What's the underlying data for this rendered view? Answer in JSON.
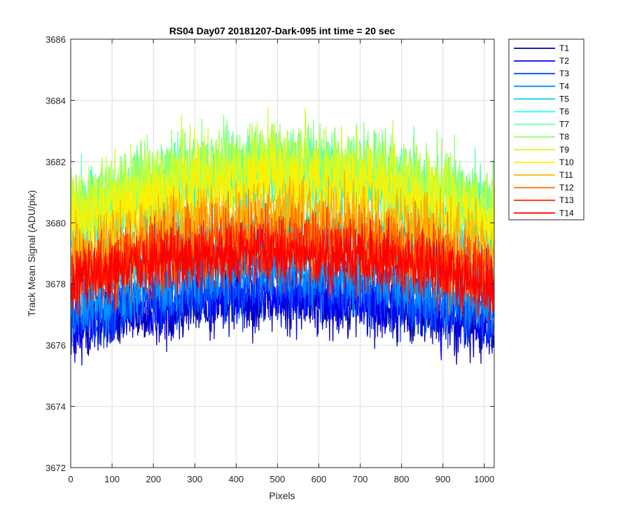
{
  "chart_data": {
    "type": "line",
    "title": "RS04 Day07 20181207-Dark-095 int time = 20 sec",
    "xlabel": "Pixels",
    "ylabel": "Track Mean Signal (ADU/pix)",
    "xlim": [
      0,
      1024
    ],
    "ylim": [
      3672,
      3686
    ],
    "xticks": [
      0,
      100,
      200,
      300,
      400,
      500,
      600,
      700,
      800,
      900,
      1000
    ],
    "yticks": [
      3672,
      3674,
      3676,
      3678,
      3680,
      3682,
      3684,
      3686
    ],
    "grid": true,
    "legend_position": "outside-top-right",
    "n_points": 1024,
    "profile_note_x_values": "pixel index 1..1024",
    "series": [
      {
        "name": "T1",
        "color": "#0000A8",
        "center_mean": 3677.5,
        "edge_mean": 3676.4,
        "noise_sd": 0.9
      },
      {
        "name": "T2",
        "color": "#0000FF",
        "center_mean": 3677.7,
        "edge_mean": 3676.6,
        "noise_sd": 0.9
      },
      {
        "name": "T3",
        "color": "#0050FF",
        "center_mean": 3678.0,
        "edge_mean": 3676.9,
        "noise_sd": 0.9
      },
      {
        "name": "T4",
        "color": "#0090FF",
        "center_mean": 3678.5,
        "edge_mean": 3677.3,
        "noise_sd": 0.9
      },
      {
        "name": "T5",
        "color": "#00D0FF",
        "center_mean": 3679.6,
        "edge_mean": 3678.3,
        "noise_sd": 1.0
      },
      {
        "name": "T6",
        "color": "#20FFE0",
        "center_mean": 3681.4,
        "edge_mean": 3679.8,
        "noise_sd": 1.1
      },
      {
        "name": "T7",
        "color": "#60FFB0",
        "center_mean": 3681.8,
        "edge_mean": 3680.2,
        "noise_sd": 1.1
      },
      {
        "name": "T8",
        "color": "#90FF70",
        "center_mean": 3682.0,
        "edge_mean": 3680.4,
        "noise_sd": 1.1
      },
      {
        "name": "T9",
        "color": "#C8FF30",
        "center_mean": 3681.9,
        "edge_mean": 3680.3,
        "noise_sd": 1.1
      },
      {
        "name": "T10",
        "color": "#FFF000",
        "center_mean": 3681.3,
        "edge_mean": 3679.8,
        "noise_sd": 1.0
      },
      {
        "name": "T11",
        "color": "#FFB000",
        "center_mean": 3680.2,
        "edge_mean": 3679.0,
        "noise_sd": 1.0
      },
      {
        "name": "T12",
        "color": "#FF7000",
        "center_mean": 3679.6,
        "edge_mean": 3678.4,
        "noise_sd": 1.0
      },
      {
        "name": "T13",
        "color": "#FF3000",
        "center_mean": 3679.2,
        "edge_mean": 3678.1,
        "noise_sd": 0.9
      },
      {
        "name": "T14",
        "color": "#FF0000",
        "center_mean": 3679.0,
        "edge_mean": 3678.0,
        "noise_sd": 0.9
      }
    ]
  }
}
